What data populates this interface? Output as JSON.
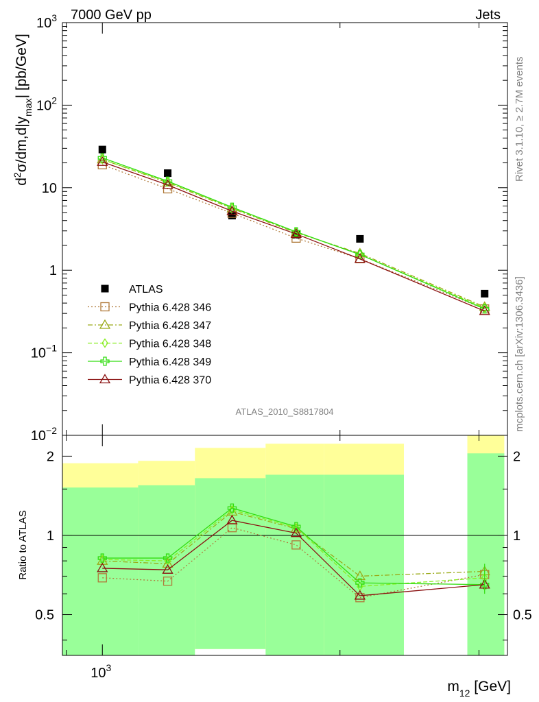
{
  "header": {
    "left": "7000 GeV pp",
    "right": "Jets"
  },
  "side_labels": {
    "top": "Rivet 3.1.10, ≥ 2.7M events",
    "bottom": "mcplots.cern.ch [arXiv:1306.3436]"
  },
  "analysis_id": "ATLAS_2010_S8817804",
  "chart_data": {
    "type": "scatter",
    "x_scale": "log",
    "y_scale": "log",
    "xlabel": "m12 [GeV]",
    "ylabel": "d2σ/dm,d|ymax| [pb/GeV]",
    "ylim": [
      0.01,
      1000
    ],
    "main_y_ticks": [
      "10^-2",
      "10^-1",
      "1",
      "10",
      "10^2",
      "10^3"
    ],
    "x_ticks": [
      "10^3"
    ],
    "ratio_ylabel": "Ratio to ATLAS",
    "ratio_y_ticks": [
      "0.5",
      "1",
      "2"
    ],
    "ratio_ylim": [
      0.35,
      2.4
    ],
    "x": [
      1000,
      1210,
      1460,
      1760,
      2120,
      3050
    ],
    "bins": [
      [
        890,
        1110
      ],
      [
        1110,
        1310
      ],
      [
        1310,
        1610
      ],
      [
        1610,
        1910
      ],
      [
        1910,
        2410
      ],
      [
        2900,
        3230
      ]
    ],
    "ratio_band_yellow": [
      [
        0.58,
        1.88
      ],
      [
        0.55,
        1.92
      ],
      [
        0.37,
        2.15
      ],
      [
        0.37,
        2.23
      ],
      [
        0.35,
        2.23
      ],
      [
        0.35,
        2.42
      ]
    ],
    "ratio_band_green": [
      [
        0.35,
        1.52
      ],
      [
        0.35,
        1.55
      ],
      [
        0.37,
        1.65
      ],
      [
        0.35,
        1.7
      ],
      [
        0.35,
        1.7
      ],
      [
        0.35,
        2.05
      ]
    ],
    "series": [
      {
        "name": "ATLAS",
        "color": "#000000",
        "marker": "square-filled",
        "values": [
          29,
          15,
          4.6,
          2.7,
          2.4,
          0.52
        ]
      },
      {
        "name": "Pythia 6.428 346",
        "color": "#b07a3a",
        "marker": "square-open",
        "dash": "2,3",
        "values": [
          19,
          9.7,
          4.9,
          2.45,
          1.38,
          0.34
        ],
        "ratio": [
          0.69,
          0.67,
          1.07,
          0.92,
          0.58,
          0.71
        ]
      },
      {
        "name": "Pythia 6.428 347",
        "color": "#9aaa18",
        "marker": "triangle-open",
        "dash": "7,3,2,3",
        "values": [
          22,
          11.5,
          5.6,
          2.85,
          1.6,
          0.36
        ],
        "ratio": [
          0.8,
          0.78,
          1.23,
          1.06,
          0.7,
          0.73
        ]
      },
      {
        "name": "Pythia 6.428 348",
        "color": "#88ee22",
        "marker": "diamond-open",
        "dash": "6,3",
        "values": [
          22,
          11.8,
          5.7,
          2.9,
          1.55,
          0.35
        ],
        "ratio": [
          0.81,
          0.8,
          1.25,
          1.07,
          0.64,
          0.69
        ]
      },
      {
        "name": "Pythia 6.428 349",
        "color": "#33dd11",
        "marker": "cross",
        "dash": "",
        "values": [
          23,
          12,
          5.8,
          2.92,
          1.55,
          0.34
        ],
        "ratio": [
          0.82,
          0.82,
          1.27,
          1.08,
          0.66,
          0.65
        ]
      },
      {
        "name": "Pythia 6.428 370",
        "color": "#8a1010",
        "marker": "triangle-open",
        "dash": "",
        "values": [
          20.5,
          10.8,
          5.2,
          2.75,
          1.37,
          0.32
        ],
        "ratio": [
          0.75,
          0.74,
          1.14,
          1.02,
          0.59,
          0.65
        ]
      }
    ]
  }
}
